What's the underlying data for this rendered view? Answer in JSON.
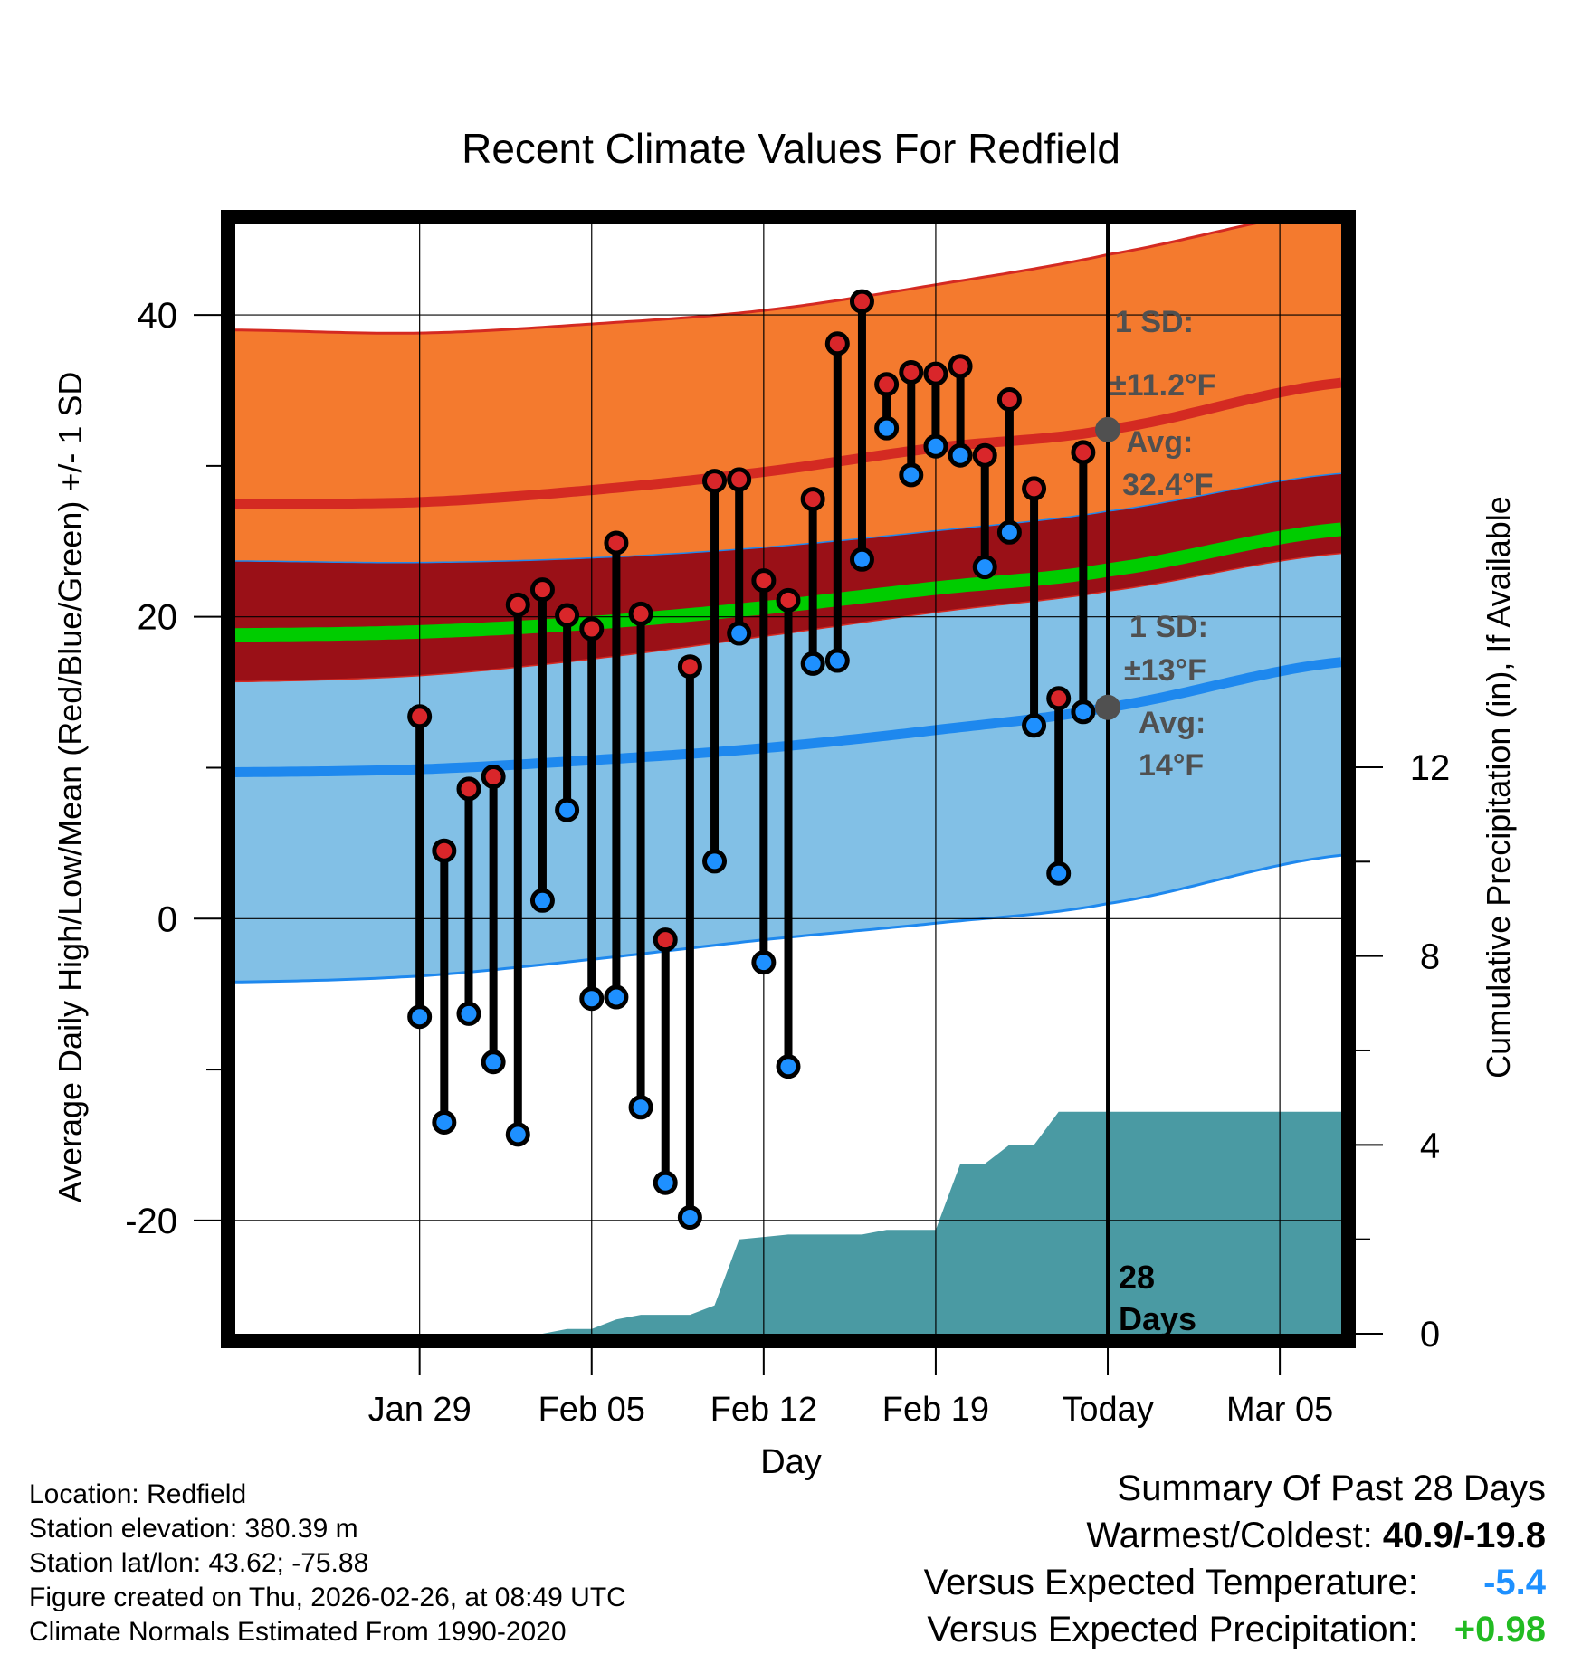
{
  "chart_data": {
    "type": "range-climate",
    "title": "Recent Climate Values For Redfield",
    "xlabel": "Day",
    "ylabel_left": "Average Daily High/Low/Mean (Red/Blue/Green) +/- 1 SD",
    "ylabel_right": "Cumulative Precipitation (in), If Available",
    "x_day_range": [
      -35.5,
      9.5
    ],
    "ylim": [
      -27.5,
      46
    ],
    "y_ticks": [
      -20,
      0,
      20,
      40
    ],
    "y_ticks_right": [
      0,
      4,
      8,
      12
    ],
    "precip_ylim": [
      0,
      23.5
    ],
    "x_ticks": [
      {
        "day": -28,
        "label": "Jan 29"
      },
      {
        "day": -21,
        "label": "Feb 05"
      },
      {
        "day": -14,
        "label": "Feb 12"
      },
      {
        "day": -7,
        "label": "Feb 19"
      },
      {
        "day": 0,
        "label": "Today"
      },
      {
        "day": 7,
        "label": "Mar 05"
      }
    ],
    "normals": {
      "days": [
        -35.5,
        -28,
        -21,
        -14,
        -7,
        0,
        9.5
      ],
      "high_avg": [
        27.5,
        27.6,
        28.4,
        29.6,
        31.2,
        32.4,
        35.5
      ],
      "high_sd_upper": [
        39,
        38.8,
        39.4,
        40.3,
        42,
        44,
        47
      ],
      "high_sd_lower": [
        23.7,
        23.6,
        23.9,
        24.6,
        25.7,
        27.0,
        29.5
      ],
      "mean_avg": [
        18.8,
        19.0,
        19.6,
        20.6,
        21.9,
        23.1,
        25.8
      ],
      "low_avg": [
        9.7,
        9.9,
        10.5,
        11.3,
        12.5,
        14.0,
        17.0
      ],
      "low_sd_upper": [
        15.7,
        16.1,
        17.2,
        18.7,
        20.3,
        21.7,
        24.2
      ],
      "low_sd_lower": [
        -4.2,
        -3.8,
        -2.7,
        -1.4,
        -0.3,
        1.0,
        4.2
      ]
    },
    "daily": {
      "days": [
        -28,
        -27,
        -26,
        -25,
        -24,
        -23,
        -22,
        -21,
        -20,
        -19,
        -18,
        -17,
        -16,
        -15,
        -14,
        -13,
        -12,
        -11,
        -10,
        -9,
        -8,
        -7,
        -6,
        -5,
        -4,
        -3,
        -2,
        -1
      ],
      "highs": [
        13.4,
        4.5,
        8.6,
        9.4,
        20.8,
        21.8,
        20.1,
        19.2,
        24.9,
        20.2,
        -1.4,
        16.7,
        29.0,
        29.1,
        22.4,
        21.1,
        27.8,
        38.1,
        40.9,
        35.4,
        36.2,
        36.1,
        36.6,
        30.7,
        34.4,
        28.5,
        14.6,
        30.9
      ],
      "lows": [
        -6.5,
        -13.5,
        -6.3,
        -9.5,
        -14.3,
        1.2,
        7.2,
        -5.3,
        -5.2,
        -12.5,
        -17.5,
        -19.8,
        3.8,
        18.9,
        -2.9,
        -9.8,
        16.9,
        17.1,
        23.8,
        32.5,
        29.4,
        31.3,
        30.7,
        23.3,
        25.6,
        12.8,
        3.0,
        13.7
      ]
    },
    "precip": {
      "days": [
        -35.5,
        -23,
        -22,
        -21,
        -20,
        -19,
        -18,
        -17,
        -16,
        -15,
        -14,
        -13,
        -12,
        -11,
        -10,
        -9,
        -8,
        -7,
        -6,
        -5,
        -4,
        -3,
        -2,
        -1,
        0,
        9.5
      ],
      "cumulative": [
        0,
        0,
        0.1,
        0.1,
        0.3,
        0.4,
        0.4,
        0.4,
        0.6,
        2.0,
        2.05,
        2.1,
        2.1,
        2.1,
        2.1,
        2.2,
        2.2,
        2.2,
        3.6,
        3.6,
        4.0,
        4.0,
        4.7,
        4.7,
        4.7,
        4.7
      ]
    },
    "annotations": {
      "high_sd": [
        "1 SD:",
        "±11.2°F"
      ],
      "high_avg": [
        "Avg:",
        "32.4°F"
      ],
      "high_avg_today": 32.4,
      "low_sd": [
        "1 SD:",
        "±13°F"
      ],
      "low_avg": [
        "Avg:",
        "14°F"
      ],
      "low_avg_today": 14,
      "window": [
        "28",
        "Days"
      ]
    },
    "colors": {
      "high_band": "#f47a2e",
      "high_line": "#d42a22",
      "overlap": "#9a1017",
      "mean_line": "#00cc00",
      "low_band": "#82c0e6",
      "low_line": "#1e88ee",
      "precip": "#4a9aa3",
      "high_dot": "#d9262a",
      "low_dot": "#1e90ff",
      "annotation": "#505050"
    }
  },
  "info": {
    "location": "Location: Redfield",
    "elevation": "Station elevation: 380.39 m",
    "latlon": "Station lat/lon: 43.62; -75.88",
    "created": "Figure created on Thu, 2026-02-26, at 08:49 UTC",
    "normals": "Climate Normals Estimated From 1990-2020"
  },
  "summary": {
    "title": "Summary Of Past 28 Days",
    "warm_cold_label": "Warmest/Coldest:",
    "warm_cold_value": "40.9/-19.8",
    "temp_label": "Versus Expected Temperature:",
    "temp_value": "-5.4",
    "temp_color": "#1e90ff",
    "precip_label": "Versus Expected Precipitation:",
    "precip_value": "+0.98",
    "precip_color": "#22bb22"
  }
}
